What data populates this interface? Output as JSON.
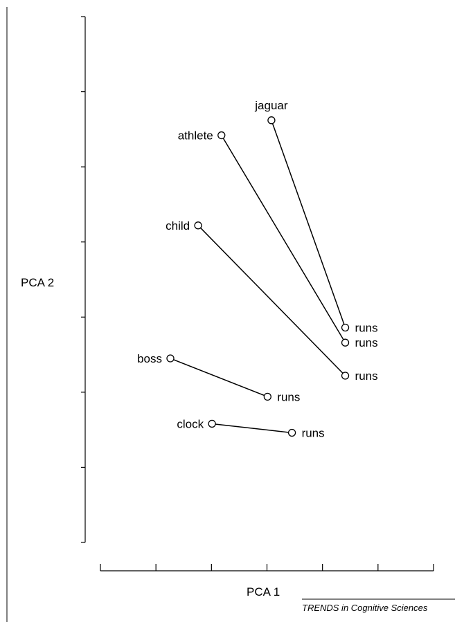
{
  "chart_data": {
    "type": "scatter",
    "title": "",
    "xlabel": "PCA 1",
    "ylabel": "PCA 2",
    "xlim": [
      0,
      6
    ],
    "ylim": [
      0,
      7
    ],
    "x_ticks": [
      0,
      1,
      2,
      3,
      4,
      5,
      6
    ],
    "y_ticks": [
      0,
      1,
      2,
      3,
      4,
      5,
      6,
      7
    ],
    "grid": false,
    "credit": "TRENDS in Cognitive Sciences",
    "pairs": [
      {
        "noun": {
          "label": "jaguar",
          "x": 3.08,
          "y": 5.62
        },
        "verb": {
          "label": "runs",
          "x": 4.41,
          "y": 2.86
        }
      },
      {
        "noun": {
          "label": "athlete",
          "x": 2.18,
          "y": 5.42
        },
        "verb": {
          "label": "runs",
          "x": 4.41,
          "y": 2.66
        }
      },
      {
        "noun": {
          "label": "child",
          "x": 1.76,
          "y": 4.22
        },
        "verb": {
          "label": "runs",
          "x": 4.41,
          "y": 2.22
        }
      },
      {
        "noun": {
          "label": "boss",
          "x": 1.26,
          "y": 2.45
        },
        "verb": {
          "label": "runs",
          "x": 3.01,
          "y": 1.94
        }
      },
      {
        "noun": {
          "label": "clock",
          "x": 2.01,
          "y": 1.58
        },
        "verb": {
          "label": "runs",
          "x": 3.45,
          "y": 1.46
        }
      }
    ]
  }
}
